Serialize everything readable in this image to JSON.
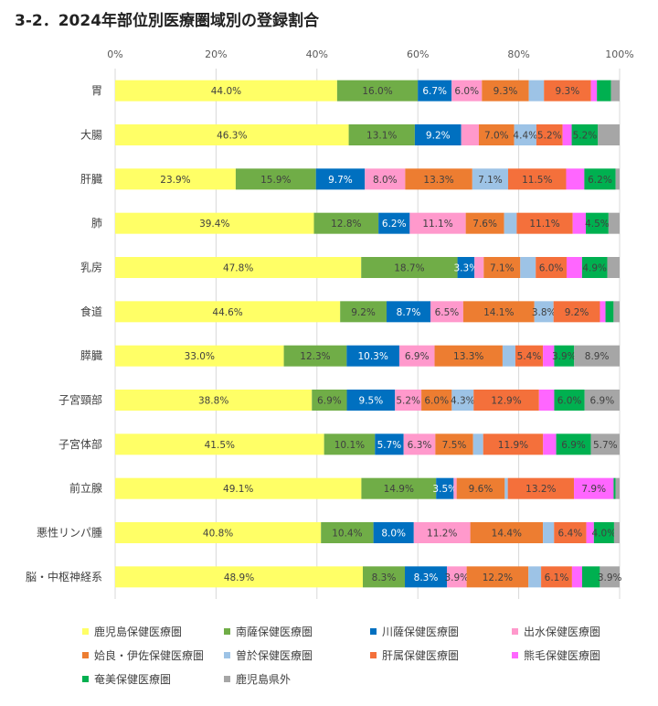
{
  "chart_data": {
    "type": "bar",
    "orientation": "horizontal",
    "stacked": "percent",
    "title": "3-2．2024年部位別医療圏域別の登録割合",
    "xlabel": "",
    "ylabel": "",
    "xlim": [
      0,
      100
    ],
    "x_ticks": [
      "0%",
      "20%",
      "40%",
      "60%",
      "80%",
      "100%"
    ],
    "grid": true,
    "legend_position": "bottom",
    "categories": [
      "胃",
      "大腸",
      "肝臓",
      "肺",
      "乳房",
      "食道",
      "膵臓",
      "子宮頸部",
      "子宮体部",
      "前立腺",
      "悪性リンパ腫",
      "脳・中枢神経系"
    ],
    "series": [
      {
        "name": "鹿児島保健医療圏",
        "color": "#ffff66",
        "values": [
          44.0,
          46.3,
          23.9,
          39.4,
          47.8,
          44.6,
          33.0,
          38.8,
          41.5,
          49.1,
          40.8,
          48.9
        ],
        "labels": [
          "44.0%",
          "46.3%",
          "23.9%",
          "39.4%",
          "47.8%",
          "44.6%",
          "33.0%",
          "38.8%",
          "41.5%",
          "49.1%",
          "40.8%",
          "48.9%"
        ]
      },
      {
        "name": "南薩保健医療圏",
        "color": "#70ad47",
        "values": [
          16.0,
          13.1,
          15.9,
          12.8,
          18.7,
          9.2,
          12.3,
          6.9,
          10.1,
          14.9,
          10.4,
          8.3
        ],
        "labels": [
          "16.0%",
          "13.1%",
          "15.9%",
          "12.8%",
          "18.7%",
          "9.2%",
          "12.3%",
          "6.9%",
          "10.1%",
          "14.9%",
          "10.4%",
          "8.3%"
        ]
      },
      {
        "name": "川薩保健医療圏",
        "color": "#0070c0",
        "values": [
          6.7,
          9.2,
          9.7,
          6.2,
          3.3,
          8.7,
          10.3,
          9.5,
          5.7,
          3.5,
          8.0,
          8.3
        ],
        "labels": [
          "6.7%",
          "9.2%",
          "9.7%",
          "6.2%",
          "3.3%",
          "8.7%",
          "10.3%",
          "9.5%",
          "5.7%",
          "3.5%",
          "8.0%",
          "8.3%"
        ]
      },
      {
        "name": "出水保健医療圏",
        "color": "#ff99cc",
        "values": [
          6.0,
          3.5,
          8.0,
          11.1,
          1.8,
          6.5,
          6.9,
          5.2,
          6.3,
          0.6,
          11.2,
          3.9
        ],
        "labels": [
          "6.0%",
          "",
          "8.0%",
          "11.1%",
          "",
          "6.5%",
          "6.9%",
          "5.2%",
          "6.3%",
          "",
          "11.2%",
          "3.9%"
        ]
      },
      {
        "name": "姶良・伊佐保健医療圏",
        "color": "#ed7d31",
        "values": [
          9.3,
          7.0,
          13.3,
          7.6,
          7.1,
          14.1,
          13.3,
          6.0,
          7.5,
          9.6,
          14.4,
          12.2
        ],
        "labels": [
          "9.3%",
          "7.0%",
          "13.3%",
          "7.6%",
          "7.1%",
          "14.1%",
          "13.3%",
          "6.0%",
          "7.5%",
          "9.6%",
          "14.4%",
          "12.2%"
        ]
      },
      {
        "name": "曽於保健医療圏",
        "color": "#9dc3e6",
        "values": [
          3.0,
          4.4,
          7.1,
          2.5,
          3.0,
          3.8,
          2.5,
          4.3,
          2.0,
          0.6,
          2.2,
          2.5
        ],
        "labels": [
          "",
          "4.4%",
          "7.1%",
          "",
          "",
          "3.8%",
          "",
          "4.3%",
          "",
          "",
          "",
          ""
        ]
      },
      {
        "name": "肝属保健医療圏",
        "color": "#f4703b",
        "values": [
          9.3,
          5.2,
          11.5,
          11.1,
          6.0,
          9.2,
          5.4,
          12.9,
          11.9,
          13.2,
          6.4,
          6.1
        ],
        "labels": [
          "9.3%",
          "5.2%",
          "11.5%",
          "11.1%",
          "6.0%",
          "9.2%",
          "5.4%",
          "12.9%",
          "11.9%",
          "13.2%",
          "6.4%",
          "6.1%"
        ]
      },
      {
        "name": "熊毛保健医療圏",
        "color": "#ff66ff",
        "values": [
          1.2,
          1.8,
          3.6,
          2.6,
          3.0,
          1.1,
          2.2,
          3.0,
          2.6,
          7.9,
          1.5,
          2.0
        ],
        "labels": [
          "",
          "",
          "",
          "",
          "",
          "",
          "",
          "",
          "",
          "7.9%",
          "",
          ""
        ]
      },
      {
        "name": "奄美保健医療圏",
        "color": "#00b050",
        "values": [
          2.8,
          5.2,
          6.2,
          4.5,
          4.9,
          1.6,
          3.9,
          6.0,
          6.9,
          0.4,
          4.0,
          3.5
        ],
        "labels": [
          "",
          "5.2%",
          "6.2%",
          "4.5%",
          "4.9%",
          "",
          "3.9%",
          "6.0%",
          "6.9%",
          "",
          "4.0%",
          ""
        ]
      },
      {
        "name": "鹿児島県外",
        "color": "#a6a6a6",
        "values": [
          1.7,
          4.3,
          0.8,
          2.2,
          2.4,
          1.2,
          8.9,
          6.9,
          5.7,
          0.8,
          1.1,
          3.9
        ],
        "labels": [
          "",
          "",
          "",
          "",
          "",
          "",
          "8.9%",
          "6.9%",
          "5.7%",
          "",
          "",
          "3.9%"
        ]
      }
    ]
  }
}
